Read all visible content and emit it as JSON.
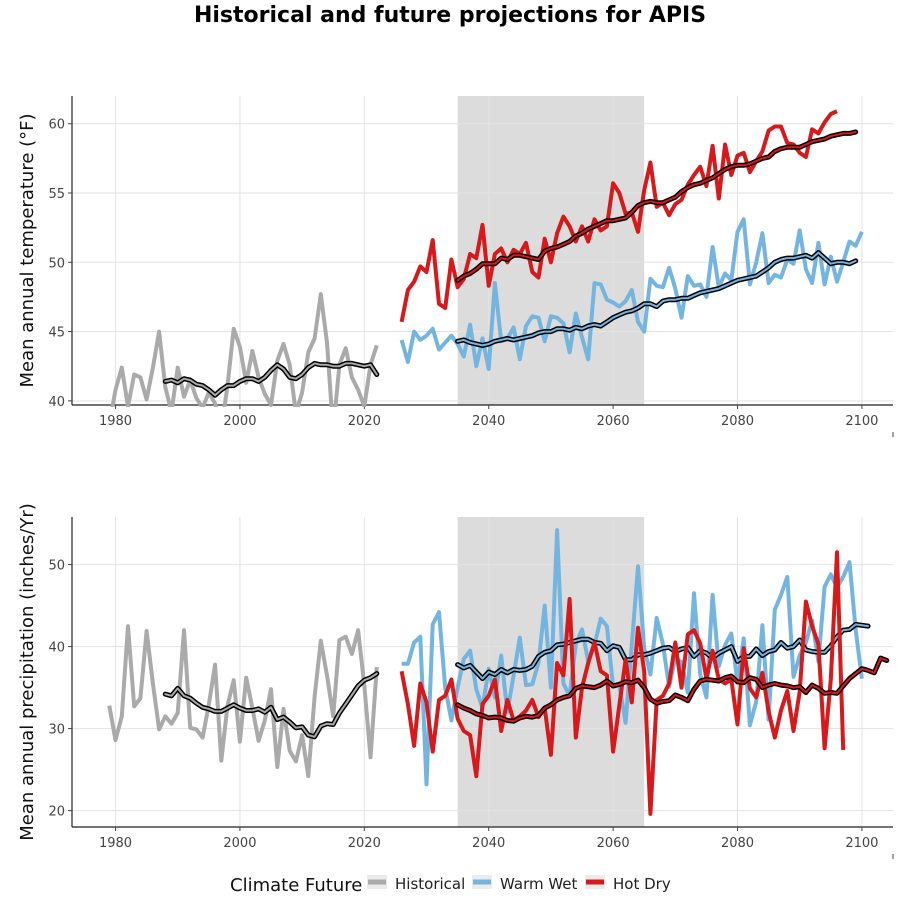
{
  "chart_data": {
    "type": "line",
    "title": "Historical and future projections for APIS",
    "legend": {
      "title": "Climate Future",
      "position": "bottom",
      "entries": [
        {
          "name": "Historical",
          "color": "#aaaaaa"
        },
        {
          "name": "Warm Wet",
          "color": "#74b5e0"
        },
        {
          "name": "Hot Dry",
          "color": "#d7191c"
        }
      ]
    },
    "reference_period": [
      2035,
      2065
    ],
    "panels": [
      {
        "ylabel": "Mean annual temperature (°F)",
        "xlim": [
          1973,
          2105
        ],
        "ylim": [
          39.7,
          62
        ],
        "xticks": [
          1980,
          2000,
          2020,
          2040,
          2060,
          2080,
          2100
        ],
        "yticks": [
          40,
          45,
          50,
          55,
          60
        ],
        "grid": true,
        "series": [
          {
            "name": "Historical",
            "color": "#aaaaaa",
            "x0": 1979,
            "values": [
              38.3,
              40.8,
              42.4,
              39.6,
              41.9,
              41.7,
              40.1,
              42.4,
              45.0,
              41.0,
              39.2,
              42.4,
              40.3,
              41.5,
              40.2,
              39.5,
              40.6,
              39.8,
              37.9,
              41.1,
              45.2,
              43.9,
              41.3,
              43.6,
              41.7,
              40.5,
              39.7,
              42.9,
              44.1,
              42.6,
              39.1,
              40.6,
              43.5,
              44.5,
              47.7,
              44.2,
              37.8,
              42.6,
              43.8,
              41.7,
              40.8,
              39.6,
              42.6,
              44.0
            ]
          },
          {
            "name": "Historical (smoothed)",
            "color": "#000000",
            "smoothed": true,
            "x0": 1988,
            "values": [
              41.4,
              41.5,
              41.3,
              41.6,
              41.5,
              41.2,
              41.1,
              40.8,
              40.4,
              40.8,
              41.1,
              41.1,
              41.4,
              41.6,
              41.6,
              41.4,
              41.7,
              42.2,
              42.6,
              42.3,
              41.7,
              41.6,
              41.9,
              42.4,
              42.7,
              42.6,
              42.6,
              42.5,
              42.5,
              42.7,
              42.7,
              42.6,
              42.5,
              42.6,
              41.9
            ]
          },
          {
            "name": "Warm Wet",
            "color": "#74b5e0",
            "x0": 2026,
            "values": [
              44.4,
              42.8,
              45.0,
              44.4,
              44.7,
              45.2,
              43.7,
              44.2,
              44.7,
              44.1,
              43.2,
              45.5,
              42.5,
              44.5,
              42.3,
              48.5,
              44.3,
              44.5,
              45.3,
              43.0,
              45.4,
              46.1,
              46.0,
              44.3,
              46.1,
              46.0,
              45.6,
              43.5,
              46.3,
              44.6,
              43.0,
              48.5,
              48.4,
              47.3,
              47.1,
              46.8,
              47.2,
              48.0,
              45.7,
              45.0,
              48.8,
              48.3,
              48.2,
              49.6,
              48.1,
              46.0,
              49.0,
              48.3,
              48.4,
              47.5,
              51.1,
              48.2,
              49.2,
              48.7,
              52.2,
              53.1,
              48.4,
              50.0,
              52.1,
              48.5,
              49.1,
              48.9,
              50.2,
              49.9,
              52.3,
              49.5,
              48.5,
              51.4,
              48.4,
              50.4,
              48.6,
              50.0,
              51.5,
              51.2,
              52.2
            ]
          },
          {
            "name": "Warm Wet (smoothed)",
            "color": "#000000",
            "smoothed": true,
            "x0": 2035,
            "values": [
              44.3,
              44.4,
              44.2,
              44.1,
              44.0,
              44.1,
              44.3,
              44.4,
              44.5,
              44.4,
              44.5,
              44.6,
              44.7,
              44.9,
              45.0,
              45.0,
              45.2,
              45.2,
              45.1,
              45.3,
              45.2,
              45.4,
              45.5,
              45.4,
              45.7,
              46.0,
              46.2,
              46.4,
              46.5,
              46.7,
              47.0,
              47.0,
              46.8,
              47.2,
              47.3,
              47.3,
              47.4,
              47.4,
              47.6,
              47.8,
              47.9,
              48.0,
              48.1,
              48.3,
              48.5,
              48.7,
              48.8,
              48.9,
              49.0,
              49.3,
              49.6,
              50.0,
              50.2,
              50.3,
              50.3,
              50.4,
              50.5,
              50.3,
              50.7,
              50.3,
              49.9,
              50.0,
              50.0,
              49.9,
              50.1
            ]
          },
          {
            "name": "Hot Dry",
            "color": "#d7191c",
            "x0": 2026,
            "values": [
              45.7,
              48.0,
              48.6,
              49.7,
              49.3,
              51.6,
              47.0,
              46.7,
              50.2,
              48.2,
              48.8,
              50.6,
              50.3,
              52.7,
              48.3,
              50.6,
              51.0,
              50.0,
              50.9,
              50.6,
              51.4,
              49.3,
              48.9,
              51.7,
              50.0,
              52.1,
              53.3,
              52.6,
              51.5,
              52.6,
              51.5,
              53.1,
              52.3,
              52.6,
              55.7,
              55.0,
              53.5,
              53.6,
              52.2,
              55.2,
              57.2,
              54.0,
              54.3,
              53.4,
              54.2,
              54.5,
              55.6,
              56.3,
              56.9,
              55.5,
              58.4,
              54.6,
              58.5,
              56.3,
              57.7,
              57.9,
              56.5,
              57.3,
              58.0,
              59.5,
              59.8,
              59.8,
              58.6,
              58.5,
              57.9,
              57.6,
              59.6,
              59.3,
              60.1,
              60.7,
              60.9
            ]
          },
          {
            "name": "Hot Dry (smoothed)",
            "color": "#000000",
            "smoothed": true,
            "x0": 2035,
            "values": [
              48.7,
              49.0,
              49.2,
              49.5,
              49.9,
              49.9,
              49.9,
              50.3,
              50.2,
              50.5,
              50.5,
              50.4,
              50.3,
              50.2,
              50.8,
              51.0,
              51.1,
              51.3,
              51.5,
              51.9,
              52.1,
              52.4,
              52.6,
              52.8,
              53.0,
              53.0,
              53.1,
              53.2,
              53.6,
              54.1,
              54.3,
              54.4,
              54.3,
              54.3,
              54.5,
              54.7,
              55.1,
              55.4,
              55.6,
              55.7,
              55.9,
              56.1,
              56.4,
              56.7,
              56.9,
              57.0,
              57.0,
              57.1,
              57.3,
              57.5,
              57.6,
              58.0,
              58.2,
              58.3,
              58.3,
              58.3,
              58.5,
              58.7,
              58.8,
              58.9,
              59.1,
              59.2,
              59.3,
              59.3,
              59.4
            ]
          }
        ]
      },
      {
        "ylabel": "Mean annual precipitation (inches/Yr)",
        "xlim": [
          1973,
          2105
        ],
        "ylim": [
          18,
          55.8
        ],
        "xticks": [
          1980,
          2000,
          2020,
          2040,
          2060,
          2080,
          2100
        ],
        "yticks": [
          20,
          30,
          40,
          50
        ],
        "grid": true,
        "series": [
          {
            "name": "Historical",
            "color": "#aaaaaa",
            "x0": 1979,
            "values": [
              32.8,
              28.6,
              31.5,
              42.5,
              32.7,
              33.7,
              41.9,
              35.5,
              29.9,
              31.5,
              30.6,
              31.9,
              42.0,
              30.1,
              29.9,
              28.9,
              32.9,
              37.8,
              26.1,
              32.8,
              35.9,
              28.4,
              36.2,
              32.5,
              28.5,
              31.0,
              34.8,
              25.3,
              32.4,
              27.3,
              26.0,
              29.2,
              24.2,
              33.9,
              40.7,
              36.5,
              31.5,
              40.8,
              41.2,
              39.1,
              42.0,
              35.3,
              26.5,
              37.5
            ]
          },
          {
            "name": "Historical (smoothed)",
            "color": "#000000",
            "smoothed": true,
            "x0": 1988,
            "values": [
              34.2,
              34.0,
              34.9,
              34.0,
              33.7,
              33.1,
              32.6,
              32.4,
              32.1,
              32.1,
              32.5,
              32.9,
              32.5,
              32.2,
              32.2,
              32.4,
              32.0,
              32.6,
              31.1,
              31.4,
              30.8,
              30.1,
              30.2,
              29.2,
              29.0,
              30.3,
              30.6,
              30.5,
              31.9,
              33.0,
              34.1,
              35.2,
              35.9,
              36.2,
              36.7
            ]
          },
          {
            "name": "Warm Wet",
            "color": "#74b5e0",
            "x0": 2026,
            "values": [
              37.9,
              37.9,
              40.5,
              41.2,
              23.2,
              42.7,
              44.2,
              35.0,
              31.0,
              35.0,
              38.5,
              39.5,
              34.8,
              32.5,
              37.3,
              33.8,
              38.9,
              32.0,
              36.5,
              41.1,
              35.3,
              35.4,
              38.0,
              45.0,
              35.0,
              54.2,
              35.5,
              34.0,
              40.3,
              42.1,
              38.2,
              40.2,
              43.4,
              42.5,
              35.1,
              35.3,
              30.7,
              40.2,
              49.8,
              39.8,
              36.6,
              43.5,
              40.3,
              35.1,
              38.6,
              38.1,
              34.4,
              46.5,
              36.6,
              33.8,
              46.3,
              37.6,
              40.2,
              41.6,
              35.6,
              41.0,
              30.4,
              33.3,
              42.6,
              31.1,
              44.5,
              46.3,
              48.5,
              36.3,
              38.9,
              40.5,
              43.2,
              38.2,
              47.3,
              48.8,
              47.2,
              48.5,
              50.3,
              42.0,
              36.1
            ]
          },
          {
            "name": "Warm Wet (smoothed)",
            "color": "#000000",
            "smoothed": true,
            "x0": 2035,
            "values": [
              37.8,
              37.4,
              37.7,
              36.9,
              36.1,
              36.9,
              36.6,
              37.2,
              36.8,
              37.2,
              37.1,
              37.2,
              37.6,
              38.8,
              39.3,
              39.5,
              40.2,
              40.3,
              40.5,
              40.7,
              40.9,
              40.9,
              40.5,
              40.4,
              39.5,
              40.1,
              39.9,
              38.4,
              38.4,
              39.0,
              39.0,
              39.2,
              39.5,
              39.8,
              39.9,
              39.4,
              39.7,
              39.9,
              38.8,
              39.5,
              39.2,
              38.6,
              39.2,
              39.6,
              40.0,
              38.2,
              38.8,
              38.8,
              39.7,
              38.9,
              39.4,
              39.6,
              40.5,
              39.8,
              40.0,
              40.8,
              39.6,
              39.4,
              39.3,
              39.3,
              40.1,
              41.2,
              42.0,
              42.1,
              42.7,
              42.6,
              42.5
            ]
          },
          {
            "name": "Hot Dry",
            "color": "#d7191c",
            "x0": 2026,
            "values": [
              37.0,
              33.0,
              27.9,
              35.5,
              33.2,
              27.2,
              33.5,
              34.0,
              36.0,
              31.2,
              29.7,
              29.2,
              24.2,
              33.0,
              34.0,
              36.0,
              29.7,
              33.5,
              31.0,
              31.5,
              32.2,
              33.5,
              31.4,
              32.5,
              26.8,
              38.0,
              36.5,
              45.8,
              28.9,
              35.0,
              38.0,
              40.5,
              37.0,
              36.5,
              27.2,
              32.8,
              38.4,
              33.2,
              42.3,
              37.0,
              19.6,
              33.5,
              34.0,
              35.5,
              40.5,
              35.0,
              41.5,
              42.0,
              40.4,
              36.1,
              39.5,
              36.0,
              35.5,
              36.0,
              30.5,
              39.8,
              34.9,
              33.8,
              36.8,
              32.1,
              28.9,
              32.2,
              34.6,
              29.7,
              34.5,
              45.5,
              42.5,
              40.3,
              27.6,
              36.0,
              51.5,
              27.4
            ]
          },
          {
            "name": "Hot Dry (smoothed)",
            "color": "#000000",
            "smoothed": true,
            "x0": 2035,
            "values": [
              32.9,
              32.5,
              32.2,
              31.8,
              31.6,
              31.3,
              31.4,
              31.3,
              31.0,
              30.9,
              31.3,
              31.5,
              31.4,
              31.6,
              32.5,
              32.9,
              33.5,
              33.8,
              34.0,
              34.9,
              35.2,
              35.1,
              35.0,
              35.3,
              35.8,
              35.2,
              35.4,
              35.7,
              35.6,
              35.9,
              35.0,
              33.6,
              33.1,
              33.3,
              33.4,
              34.1,
              33.8,
              33.4,
              34.8,
              35.8,
              36.0,
              35.9,
              35.8,
              36.2,
              36.4,
              35.7,
              35.6,
              36.2,
              36.0,
              35.0,
              35.3,
              35.5,
              35.3,
              35.2,
              35.0,
              35.1,
              34.4,
              35.3,
              34.9,
              34.3,
              34.4,
              34.3,
              35.2,
              36.1,
              36.7,
              37.3,
              37.1,
              36.8,
              38.6,
              38.3
            ]
          }
        ]
      }
    ]
  }
}
